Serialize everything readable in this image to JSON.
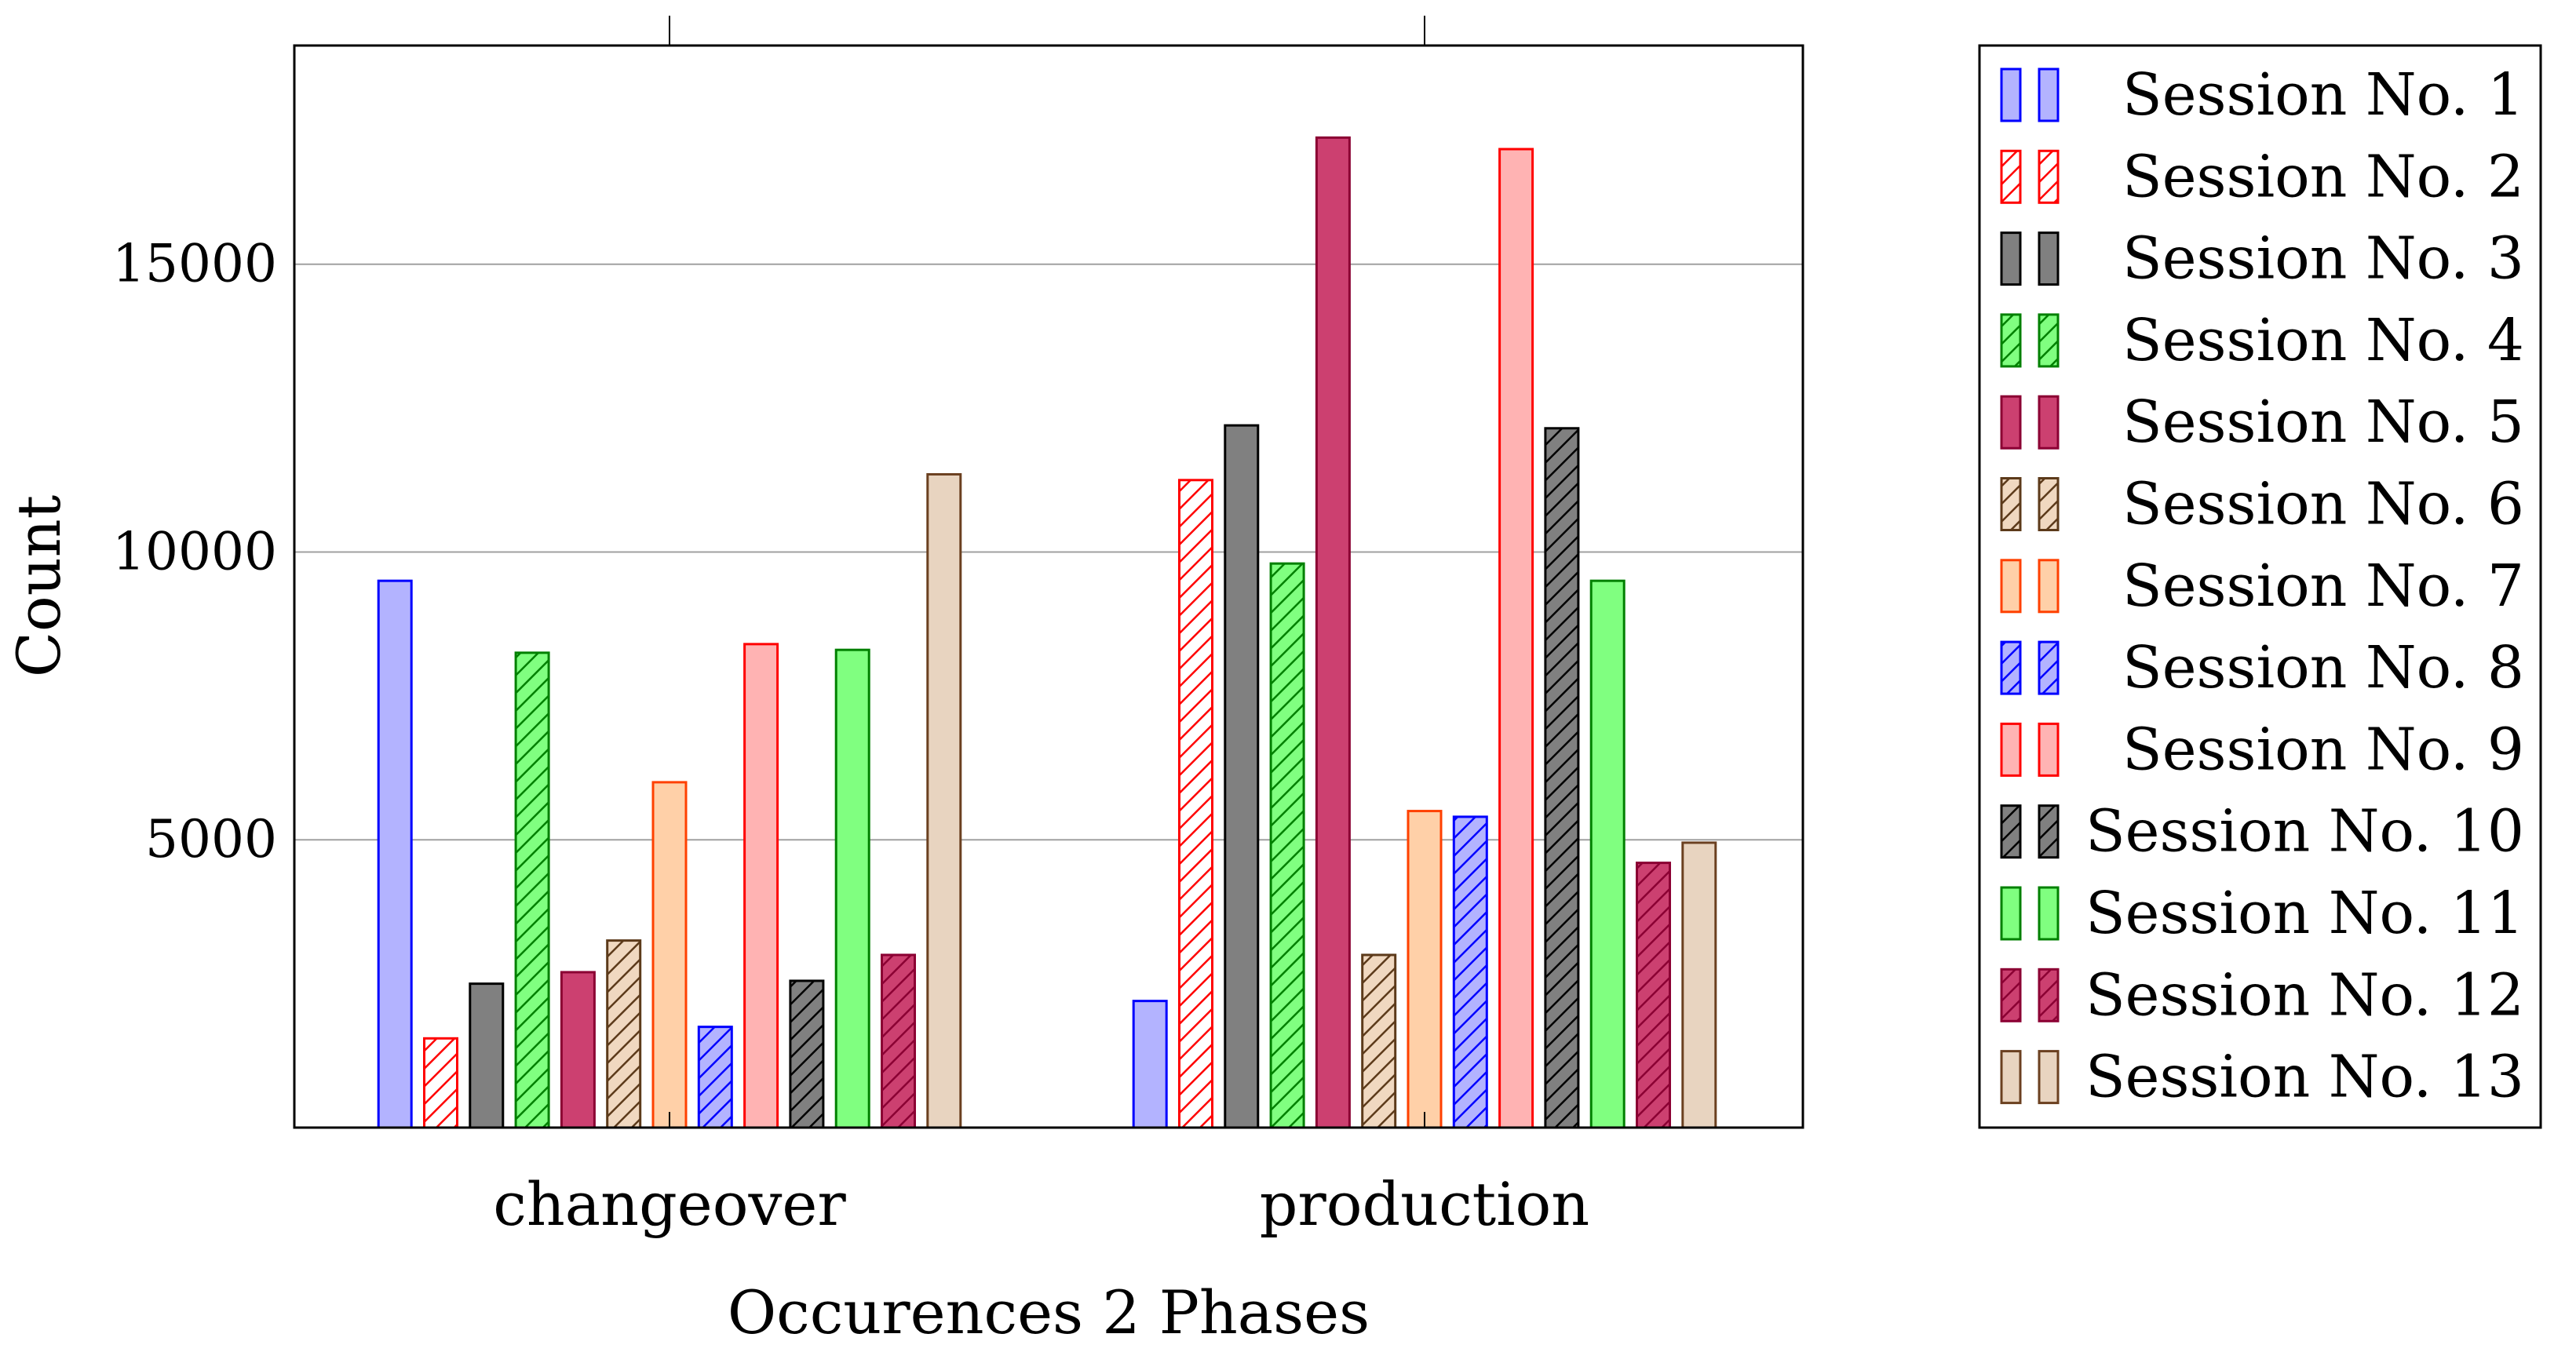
{
  "chart_data": {
    "type": "bar",
    "title": "",
    "xlabel": "Occurences 2 Phases",
    "ylabel": "Count",
    "categories": [
      "changeover",
      "production"
    ],
    "ylim": [
      0,
      18800
    ],
    "yticks": [
      5000,
      10000,
      15000
    ],
    "grid": true,
    "legend_position": "right-outside",
    "series": [
      {
        "name": "Session No. 1",
        "values": [
          9500,
          2200
        ],
        "color": "#0000ff",
        "fill": "#b3b3ff",
        "hatch": false
      },
      {
        "name": "Session No. 2",
        "values": [
          1550,
          11250
        ],
        "color": "#ff0000",
        "fill": "#ffffff",
        "hatch": true
      },
      {
        "name": "Session No. 3",
        "values": [
          2500,
          12200
        ],
        "color": "#000000",
        "fill": "#808080",
        "hatch": false
      },
      {
        "name": "Session No. 4",
        "values": [
          8250,
          9800
        ],
        "color": "#008000",
        "fill": "#80ff80",
        "hatch": true
      },
      {
        "name": "Session No. 5",
        "values": [
          2700,
          17200
        ],
        "color": "#8b0033",
        "fill": "#cc4070",
        "hatch": false
      },
      {
        "name": "Session No. 6",
        "values": [
          3250,
          3000
        ],
        "color": "#5c3a1a",
        "fill": "#f0d8c0",
        "hatch": true
      },
      {
        "name": "Session No. 7",
        "values": [
          6000,
          5500
        ],
        "color": "#ff4000",
        "fill": "#ffd0a8",
        "hatch": false
      },
      {
        "name": "Session No. 8",
        "values": [
          1750,
          5400
        ],
        "color": "#0000ff",
        "fill": "#b3b3ff",
        "hatch": true
      },
      {
        "name": "Session No. 9",
        "values": [
          8400,
          17000
        ],
        "color": "#ff0000",
        "fill": "#ffb3b3",
        "hatch": false
      },
      {
        "name": "Session No. 10",
        "values": [
          2550,
          12150
        ],
        "color": "#000000",
        "fill": "#808080",
        "hatch": true
      },
      {
        "name": "Session No. 11",
        "values": [
          8300,
          9500
        ],
        "color": "#008000",
        "fill": "#80ff80",
        "hatch": false
      },
      {
        "name": "Session No. 12",
        "values": [
          3000,
          4600
        ],
        "color": "#8b0033",
        "fill": "#cc4070",
        "hatch": true
      },
      {
        "name": "Session No. 13",
        "values": [
          11350,
          4950
        ],
        "color": "#6b4020",
        "fill": "#e8d4c0",
        "hatch": false
      }
    ]
  }
}
